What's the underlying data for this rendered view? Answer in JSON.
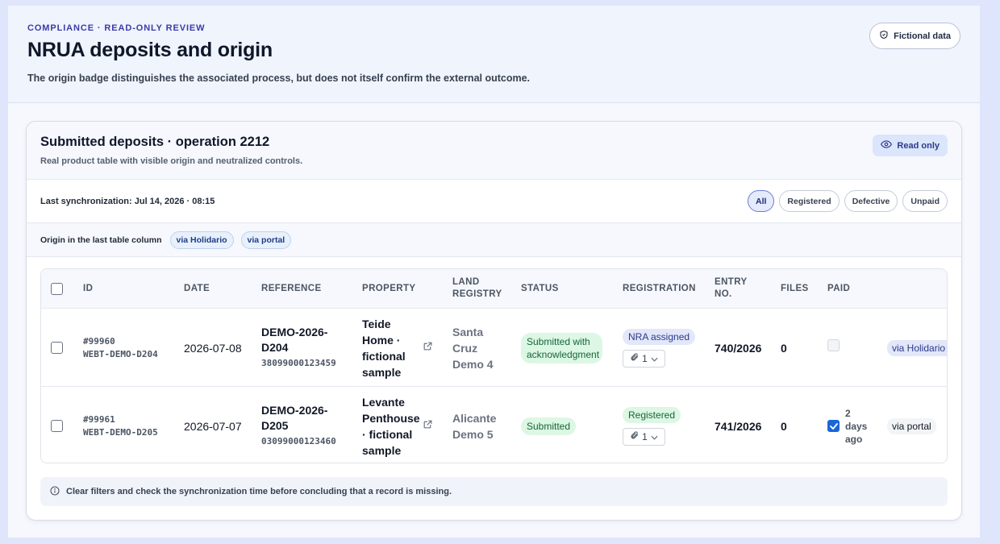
{
  "header": {
    "eyebrow": "COMPLIANCE · READ-ONLY REVIEW",
    "title": "NRUA deposits and origin",
    "description": "The origin badge distinguishes the associated process, but does not itself confirm the external outcome.",
    "fictional_badge": "Fictional data"
  },
  "card": {
    "title": "Submitted deposits · operation 2212",
    "subtitle": "Real product table with visible origin and neutralized controls.",
    "read_only": "Read only",
    "sync_label": "Last synchronization: Jul 14, 2026 · 08:15",
    "filters": [
      {
        "label": "All",
        "active": true
      },
      {
        "label": "Registered",
        "active": false
      },
      {
        "label": "Defective",
        "active": false
      },
      {
        "label": "Unpaid",
        "active": false
      }
    ],
    "origin_label": "Origin in the last table column",
    "origin_chips": [
      "via Holidario",
      "via portal"
    ],
    "notice": "Clear filters and check the synchronization time before concluding that a record is missing."
  },
  "table": {
    "columns": {
      "id": "ID",
      "date": "DATE",
      "reference": "REFERENCE",
      "property": "PROPERTY",
      "land_registry_1": "LAND",
      "land_registry_2": "REGISTRY",
      "status": "STATUS",
      "registration": "REGISTRATION",
      "entry_1": "ENTRY",
      "entry_2": "NO.",
      "files": "FILES",
      "paid": "PAID"
    },
    "rows": [
      {
        "id": "#99960",
        "id_code": "WEBT-DEMO-D204",
        "date": "2026-07-08",
        "ref_line1": "DEMO-2026-",
        "ref_line2": "D204",
        "ref_num": "38099000123459",
        "property": "Teide Home · fictional sample",
        "land_registry": "Santa Cruz Demo 4",
        "status": "Submitted with acknowledgment",
        "registration": "NRA assigned",
        "attachments": "1",
        "entry_no": "740/2026",
        "files": "0",
        "paid": false,
        "paid_text": "",
        "origin": "via Holidario"
      },
      {
        "id": "#99961",
        "id_code": "WEBT-DEMO-D205",
        "date": "2026-07-07",
        "ref_line1": "DEMO-2026-",
        "ref_line2": "D205",
        "ref_num": "03099000123460",
        "property": "Levante Penthouse · fictional sample",
        "land_registry": "Alicante Demo 5",
        "status": "Submitted",
        "registration": "Registered",
        "attachments": "1",
        "entry_no": "741/2026",
        "files": "0",
        "paid": true,
        "paid_text": "2 days ago",
        "origin": "via portal"
      }
    ]
  }
}
